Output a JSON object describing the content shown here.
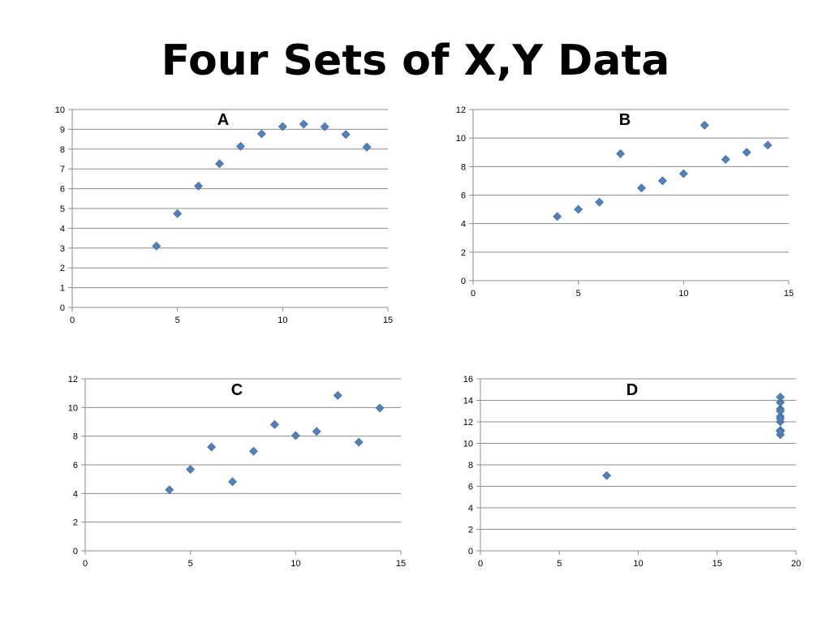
{
  "title": "Four Sets of X,Y Data",
  "colors": {
    "marker": "#4F81BD",
    "marker_stroke": "#3A6496",
    "grid": "#8C8C8C",
    "axis": "#8C8C8C"
  },
  "chart_data": [
    {
      "id": "a",
      "type": "scatter",
      "title": "A",
      "xlim": [
        0,
        15
      ],
      "ylim": [
        0,
        10
      ],
      "xticks": [
        0,
        5,
        10,
        15
      ],
      "yticks": [
        0,
        1,
        2,
        3,
        4,
        5,
        6,
        7,
        8,
        9,
        10
      ],
      "grid": true,
      "x": [
        4,
        5,
        6,
        7,
        8,
        9,
        10,
        11,
        12,
        13,
        14
      ],
      "y": [
        3.1,
        4.74,
        6.13,
        7.26,
        8.14,
        8.77,
        9.14,
        9.26,
        9.13,
        8.74,
        8.1
      ]
    },
    {
      "id": "b",
      "type": "scatter",
      "title": "B",
      "xlim": [
        0,
        15
      ],
      "ylim": [
        0,
        12
      ],
      "xticks": [
        0,
        5,
        10,
        15
      ],
      "yticks": [
        0,
        2,
        4,
        6,
        8,
        10,
        12
      ],
      "grid": true,
      "x": [
        4,
        5,
        6,
        7,
        8,
        9,
        10,
        11,
        12,
        13,
        14
      ],
      "y": [
        4.5,
        5.0,
        5.5,
        8.9,
        6.5,
        7.0,
        7.5,
        10.9,
        8.5,
        9.0,
        9.5
      ]
    },
    {
      "id": "c",
      "type": "scatter",
      "title": "C",
      "xlim": [
        0,
        15
      ],
      "ylim": [
        0,
        12
      ],
      "xticks": [
        0,
        5,
        10,
        15
      ],
      "yticks": [
        0,
        2,
        4,
        6,
        8,
        10,
        12
      ],
      "grid": true,
      "x": [
        4,
        5,
        6,
        7,
        8,
        9,
        10,
        11,
        12,
        13,
        14
      ],
      "y": [
        4.26,
        5.68,
        7.24,
        4.82,
        6.95,
        8.81,
        8.04,
        8.33,
        10.84,
        7.58,
        9.96
      ]
    },
    {
      "id": "d",
      "type": "scatter",
      "title": "D",
      "xlim": [
        0,
        20
      ],
      "ylim": [
        0,
        16
      ],
      "xticks": [
        0,
        5,
        10,
        15,
        20
      ],
      "yticks": [
        0,
        2,
        4,
        6,
        8,
        10,
        12,
        14,
        16
      ],
      "grid": true,
      "x": [
        8,
        19,
        19,
        19,
        19,
        19,
        19,
        19,
        19,
        19,
        19
      ],
      "y": [
        7.0,
        10.8,
        11.2,
        12.0,
        12.5,
        13.2,
        13.8,
        14.3,
        12.3,
        13.0,
        11.1
      ]
    }
  ]
}
